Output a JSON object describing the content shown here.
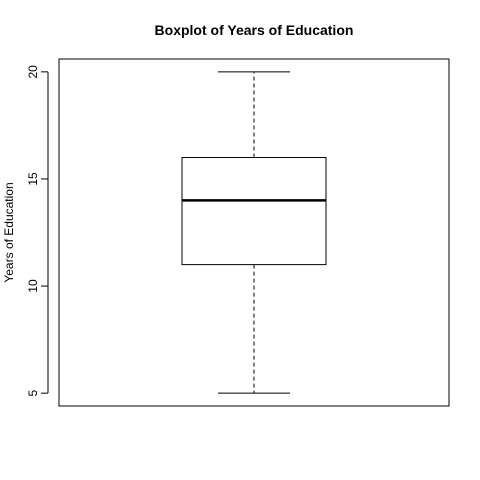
{
  "chart_data": {
    "type": "boxplot",
    "title": "Boxplot of Years of Education",
    "xlabel": "",
    "ylabel": "Years of Education",
    "ylim": [
      4.4,
      20.6
    ],
    "yticks": [
      5,
      10,
      15,
      20
    ],
    "ytick_labels": [
      "5",
      "10",
      "15",
      "20"
    ],
    "grid": false,
    "box": {
      "min": 5,
      "q1": 11,
      "median": 14,
      "q3": 16,
      "max": 20
    }
  }
}
